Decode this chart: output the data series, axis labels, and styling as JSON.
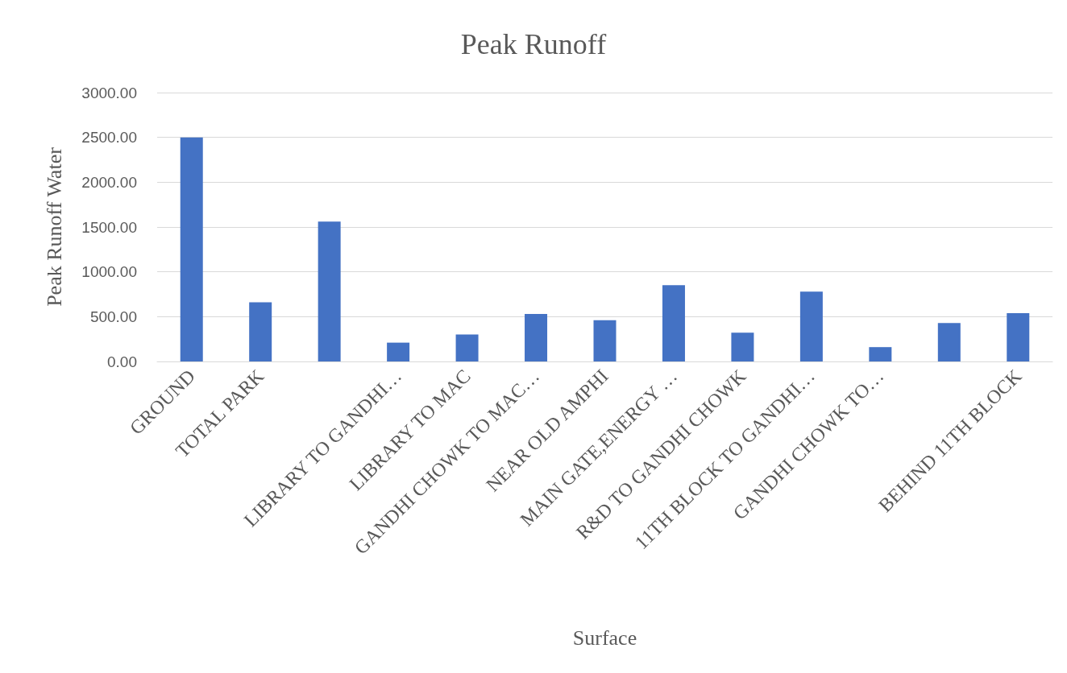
{
  "chart_data": {
    "type": "bar",
    "title": "Peak Runoff",
    "xlabel": "Surface",
    "ylabel": "Peak Runoff Water",
    "categories": [
      "GROUND",
      "TOTAL PARK",
      null,
      "LIBRARY TO GANDHI…",
      "LIBRARY TO MAC",
      "GANDHI CHOWK TO MAC…",
      "NEAR OLD AMPHI",
      "MAIN GATE,ENERGY …",
      "R&D TO GANDHI CHOWK",
      "11TH BLOCK TO GANDHI…",
      "GANDHI CHOWK TO…",
      null,
      "BEHIND 11TH BLOCK"
    ],
    "values": [
      2500,
      660,
      1560,
      210,
      300,
      530,
      460,
      850,
      320,
      780,
      160,
      430,
      540
    ],
    "color": "#4472c4",
    "ylim": [
      0,
      3000
    ],
    "yticks": [
      {
        "value": 0,
        "label": "0.00"
      },
      {
        "value": 500,
        "label": "500.00"
      },
      {
        "value": 1000,
        "label": "1000.00"
      },
      {
        "value": 1500,
        "label": "1500.00"
      },
      {
        "value": 2000,
        "label": "2000.00"
      },
      {
        "value": 2500,
        "label": "2500.00"
      },
      {
        "value": 3000,
        "label": "3000.00"
      }
    ],
    "grid": "y"
  }
}
